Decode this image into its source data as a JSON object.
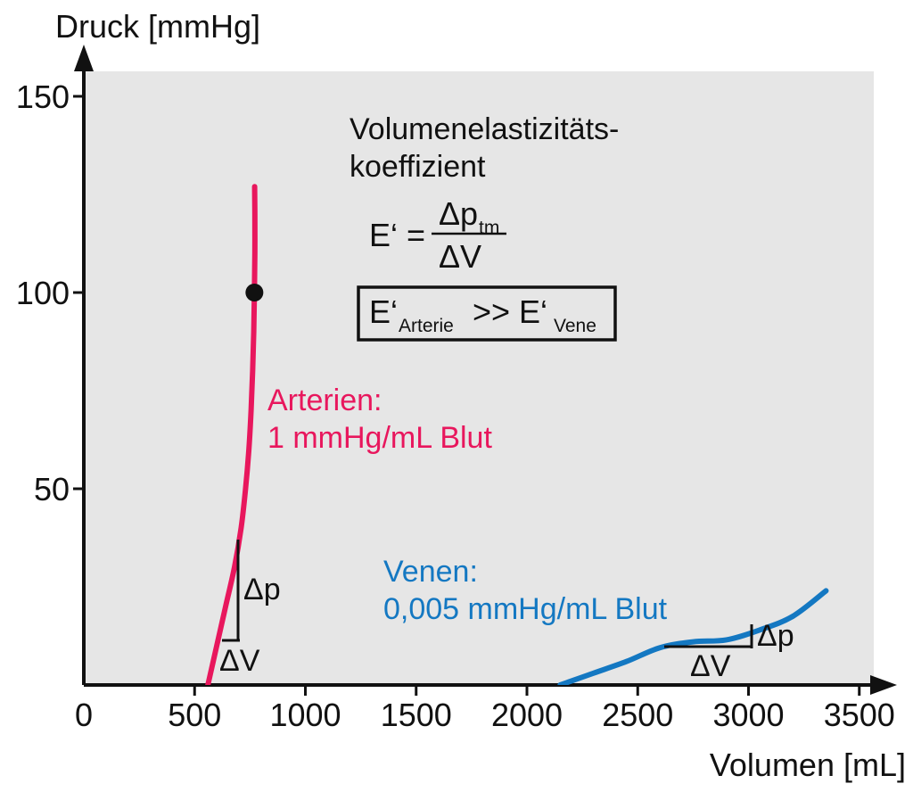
{
  "chart_data": {
    "type": "line",
    "xlabel": "Volumen [mL]",
    "ylabel": "Druck [mmHg]",
    "xlim": [
      0,
      3500
    ],
    "ylim": [
      0,
      150
    ],
    "x_ticks": [
      "0",
      "500",
      "1000",
      "1500",
      "2000",
      "2500",
      "3000",
      "3500"
    ],
    "y_ticks": [
      "50",
      "100",
      "150"
    ],
    "series": [
      {
        "name": "Arterien",
        "color": "#e8175d",
        "points": [
          [
            560,
            0
          ],
          [
            600,
            10
          ],
          [
            640,
            20
          ],
          [
            680,
            30
          ],
          [
            710,
            40
          ],
          [
            730,
            50
          ],
          [
            745,
            60
          ],
          [
            755,
            70
          ],
          [
            762,
            80
          ],
          [
            767,
            90
          ],
          [
            770,
            100
          ],
          [
            772,
            110
          ],
          [
            772,
            120
          ],
          [
            771,
            127
          ]
        ]
      },
      {
        "name": "Venen",
        "color": "#1478c2",
        "points": [
          [
            2150,
            0
          ],
          [
            2300,
            3
          ],
          [
            2450,
            6
          ],
          [
            2600,
            9.5
          ],
          [
            2750,
            11
          ],
          [
            2900,
            11.5
          ],
          [
            3050,
            14
          ],
          [
            3200,
            17.5
          ],
          [
            3350,
            24
          ]
        ]
      }
    ],
    "marker": {
      "x": 770,
      "y": 100
    },
    "annotations": {
      "arterial_label": "Arterien:",
      "arterial_value": "1 mmHg/mL Blut",
      "venous_label": "Venen:",
      "venous_value": "0,005 mmHg/mL Blut",
      "title_line1": "Volumenelastizitäts-",
      "title_line2": "koeffizient",
      "formula_lhs": "E‘ =",
      "formula_num": "Δp",
      "formula_num_sub": "tm",
      "formula_den": "ΔV",
      "box_e": "E‘",
      "box_sub1": "Arterie",
      "box_op": ">> E‘",
      "box_sub2": "Vene",
      "dp": "Δp",
      "dv": "ΔV"
    }
  }
}
